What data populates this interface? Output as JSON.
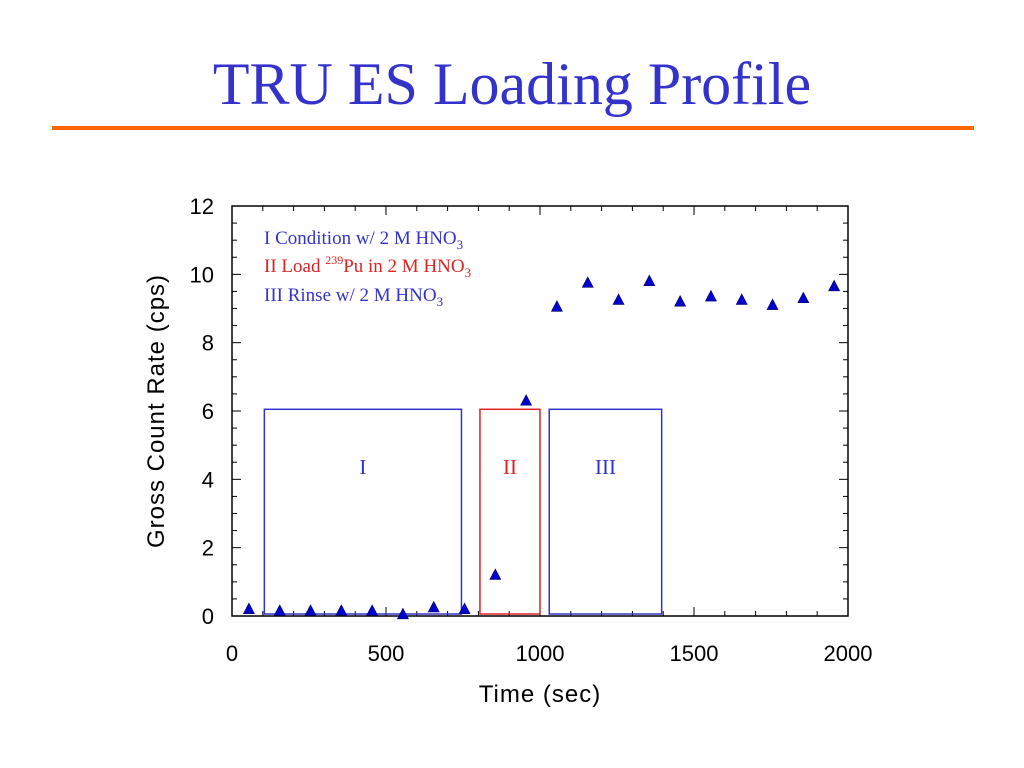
{
  "slide": {
    "title": "TRU ES Loading Profile",
    "accent_color": "#ff6600",
    "title_color": "#3333cc"
  },
  "chart_data": {
    "type": "scatter",
    "xlabel": "Time (sec)",
    "ylabel": "Gross Count Rate (cps)",
    "xlim": [
      0,
      2000
    ],
    "ylim": [
      0,
      12
    ],
    "x_ticks": [
      "0",
      "500",
      "1000",
      "1500",
      "2000"
    ],
    "y_ticks": [
      "0",
      "2",
      "4",
      "6",
      "8",
      "10",
      "12"
    ],
    "grid": false,
    "marker": "triangle",
    "marker_color": "#0000cc",
    "series": [
      {
        "x": [
          55,
          155,
          255,
          355,
          455,
          555,
          655,
          755,
          855,
          955,
          1055,
          1155,
          1255,
          1355,
          1455,
          1555,
          1655,
          1755,
          1855,
          1955
        ],
        "y": [
          0.2,
          0.15,
          0.15,
          0.15,
          0.15,
          0.05,
          0.25,
          0.2,
          1.2,
          6.3,
          9.05,
          9.75,
          9.25,
          9.8,
          9.2,
          9.35,
          9.25,
          9.1,
          9.3,
          9.65
        ]
      }
    ],
    "regions": [
      {
        "label": "I",
        "x_start": 105,
        "x_end": 745,
        "y_top": 6.05,
        "color": "#3333cc"
      },
      {
        "label": "II",
        "x_start": 805,
        "x_end": 1000,
        "y_top": 6.05,
        "color": "#dd2222"
      },
      {
        "label": "III",
        "x_start": 1030,
        "x_end": 1395,
        "y_top": 6.05,
        "color": "#3333cc"
      }
    ],
    "legend": {
      "placement": "top-left",
      "entries": [
        {
          "prefix": "I Condition w/ 2 M HNO",
          "sub": "3",
          "color": "#3333cc"
        },
        {
          "prefix": "II Load ",
          "sup": "239",
          "mid": "Pu in 2 M HNO",
          "sub": "3",
          "color": "#dd2222"
        },
        {
          "prefix": "III Rinse w/ 2 M HNO",
          "sub": "3",
          "color": "#3333cc"
        }
      ]
    }
  }
}
